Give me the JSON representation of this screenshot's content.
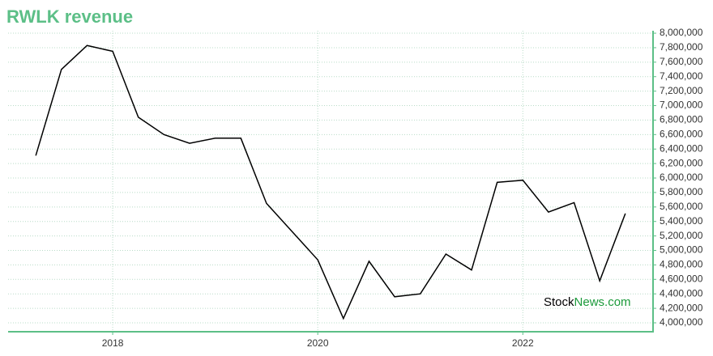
{
  "chart_data": {
    "type": "line",
    "title": "RWLK revenue",
    "x": [
      2017.25,
      2017.5,
      2017.75,
      2018.0,
      2018.25,
      2018.5,
      2018.75,
      2019.0,
      2019.25,
      2019.5,
      2019.75,
      2020.0,
      2020.25,
      2020.5,
      2020.75,
      2021.0,
      2021.25,
      2021.5,
      2021.75,
      2022.0,
      2022.25,
      2022.5,
      2022.75,
      2023.0
    ],
    "series": [
      {
        "color": "#000000",
        "values": [
          6310000,
          7500000,
          7830000,
          7750000,
          6840000,
          6600000,
          6480000,
          6550000,
          6550000,
          5650000,
          5260000,
          4870000,
          4060000,
          4850000,
          4360000,
          4400000,
          4950000,
          4730000,
          5940000,
          5970000,
          5530000,
          5660000,
          4580000,
          5510000
        ]
      }
    ],
    "xlim": [
      2016.98,
      2023.27
    ],
    "xticks": [
      2018,
      2020,
      2022
    ],
    "ylim": [
      3877000,
      8034000
    ],
    "yticks": [
      {
        "value": 4000000,
        "label": "4,000,000"
      },
      {
        "value": 4200000,
        "label": "4,200,000"
      },
      {
        "value": 4400000,
        "label": "4,400,000"
      },
      {
        "value": 4600000,
        "label": "4,600,000"
      },
      {
        "value": 4800000,
        "label": "4,800,000"
      },
      {
        "value": 5000000,
        "label": "5,000,000"
      },
      {
        "value": 5200000,
        "label": "5,200,000"
      },
      {
        "value": 5400000,
        "label": "5,400,000"
      },
      {
        "value": 5600000,
        "label": "5,600,000"
      },
      {
        "value": 5800000,
        "label": "5,800,000"
      },
      {
        "value": 6000000,
        "label": "6,000,000"
      },
      {
        "value": 6200000,
        "label": "6,200,000"
      },
      {
        "value": 6400000,
        "label": "6,400,000"
      },
      {
        "value": 6600000,
        "label": "6,600,000"
      },
      {
        "value": 6800000,
        "label": "6,800,000"
      },
      {
        "value": 7000000,
        "label": "7,000,000"
      },
      {
        "value": 7200000,
        "label": "7,200,000"
      },
      {
        "value": 7400000,
        "label": "7,400,000"
      },
      {
        "value": 7600000,
        "label": "7,600,000"
      },
      {
        "value": 7800000,
        "label": "7,800,000"
      },
      {
        "value": 8000000,
        "label": "8,000,000"
      }
    ],
    "grid": true,
    "axis_color": "#5cbf87",
    "watermark": {
      "part1": "Stock",
      "part2": "News.com"
    }
  }
}
